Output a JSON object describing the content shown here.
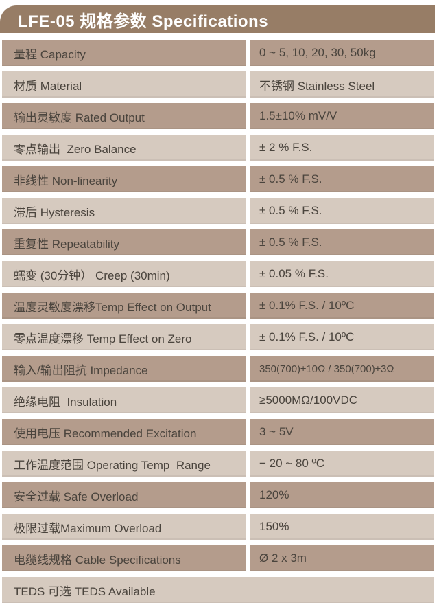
{
  "title": "LFE-05 规格参数 Specifications",
  "colors": {
    "header_bg": "#977d66",
    "row_dark": "#b49c8c",
    "row_light": "#d6cabf",
    "text": "#4a443d",
    "title_text": "#ffffff",
    "page_bg": "#ffffff"
  },
  "table": {
    "rows": [
      {
        "label": "量程 Capacity",
        "value": "0 ~ 5, 10, 20, 30, 50kg",
        "shade": "dark"
      },
      {
        "label": "材质 Material",
        "value": "不锈钢 Stainless Steel",
        "shade": "light"
      },
      {
        "label": "输出灵敏度 Rated Output",
        "value": "1.5±10% mV/V",
        "shade": "dark"
      },
      {
        "label": "零点输出  Zero Balance",
        "value": "± 2 % F.S.",
        "shade": "light"
      },
      {
        "label": "非线性 Non-linearity",
        "value": "± 0.5 % F.S.",
        "shade": "dark"
      },
      {
        "label": "滞后 Hysteresis",
        "value": "± 0.5 % F.S.",
        "shade": "light"
      },
      {
        "label": "重复性 Repeatability",
        "value": "± 0.5 % F.S.",
        "shade": "dark"
      },
      {
        "label": "蠕变 (30分钟） Creep (30min)",
        "value": "± 0.05 % F.S.",
        "shade": "light"
      },
      {
        "label": "温度灵敏度漂移Temp Effect on Output",
        "value": "± 0.1% F.S. / 10ºC",
        "shade": "dark"
      },
      {
        "label": "零点温度漂移 Temp Effect on Zero",
        "value": "± 0.1% F.S. / 10ºC",
        "shade": "light"
      },
      {
        "label": "输入/输出阻抗 Impedance",
        "value": "350(700)±10Ω / 350(700)±3Ω",
        "shade": "dark",
        "small_value": true
      },
      {
        "label": "绝缘电阻  Insulation",
        "value": "≥5000MΩ/100VDC",
        "shade": "light"
      },
      {
        "label": "使用电压 Recommended Excitation",
        "value": "3 ~ 5V",
        "shade": "dark"
      },
      {
        "label": "工作温度范围 Operating Temp  Range",
        "value": "− 20 ~ 80 ºC",
        "shade": "light"
      },
      {
        "label": "安全过载 Safe Overload",
        "value": "120%",
        "shade": "dark"
      },
      {
        "label": "极限过载Maximum Overload",
        "value": "150%",
        "shade": "light"
      },
      {
        "label": "电缆线规格 Cable Specifications",
        "value": "Ø 2 x 3m",
        "shade": "dark"
      },
      {
        "label": "TEDS 可选 TEDS Available",
        "value": null,
        "shade": "light",
        "full_width": true
      }
    ]
  }
}
